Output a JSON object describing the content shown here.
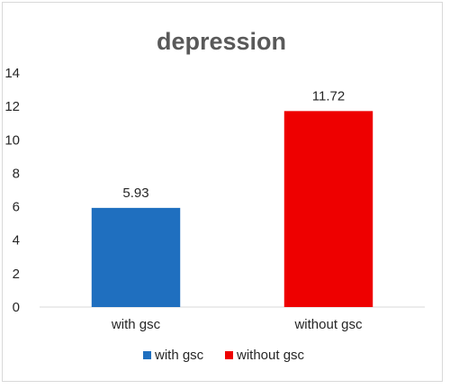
{
  "chart_data": {
    "type": "bar",
    "title": "depression",
    "categories": [
      "with gsc",
      "without gsc"
    ],
    "values": [
      5.93,
      11.72
    ],
    "data_labels": [
      "5.93",
      "11.72"
    ],
    "colors": [
      "#1f6fbf",
      "#ee0000"
    ],
    "ylim": [
      0,
      14
    ],
    "yticks": [
      "0",
      "2",
      "4",
      "6",
      "8",
      "10",
      "12",
      "14"
    ],
    "grid": false,
    "legend": {
      "position": "bottom",
      "entries": [
        "with gsc",
        "without gsc"
      ]
    }
  }
}
